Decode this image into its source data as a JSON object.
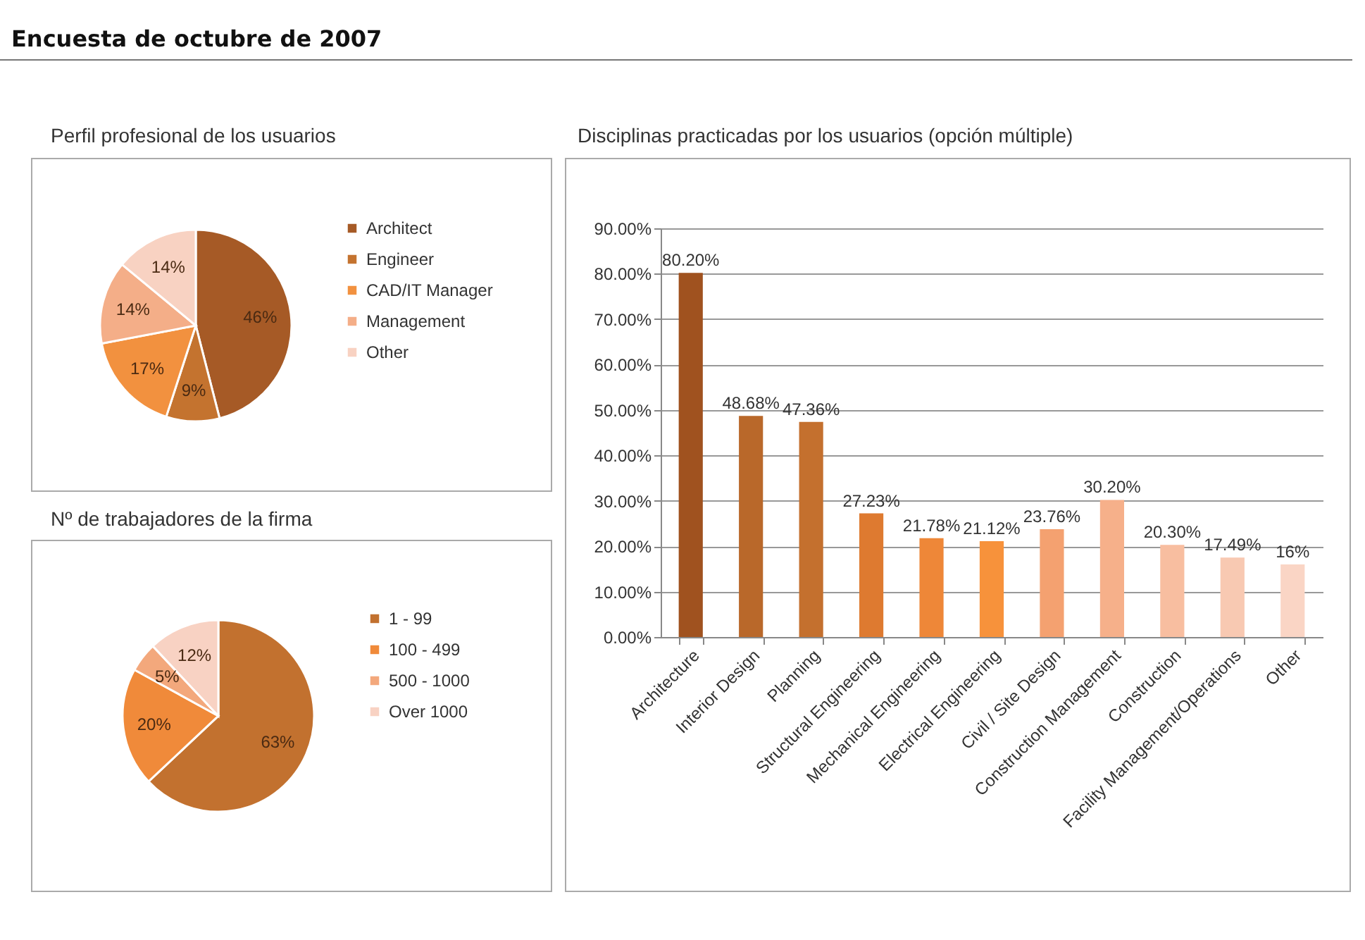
{
  "chart_data": [
    {
      "type": "pie",
      "title": "Encuesta de octubre de 2007",
      "subtitle": "Perfil profesional de los usuarios",
      "categories": [
        "Architect",
        "Engineer",
        "CAD/IT Manager",
        "Management",
        "Other"
      ],
      "values": [
        46,
        9,
        17,
        14,
        14
      ],
      "value_labels": [
        "46%",
        "9%",
        "17%",
        "14%",
        "14%"
      ],
      "colors": [
        "#a65a26",
        "#c4732f",
        "#f2913f",
        "#f4ae88",
        "#f8d2c2"
      ],
      "legend": "right"
    },
    {
      "type": "pie",
      "title": "Nº de trabajadores de la firma",
      "categories": [
        "1 - 99",
        "100 - 499",
        "500 - 1000",
        "Over 1000"
      ],
      "values": [
        63,
        20,
        5,
        12
      ],
      "value_labels": [
        "63%",
        "20%",
        "5%",
        "12%"
      ],
      "colors": [
        "#c2712f",
        "#f08a3a",
        "#f3a87c",
        "#f8d2c3"
      ],
      "legend": "right"
    },
    {
      "type": "bar",
      "title": "Disciplinas practicadas por los usuarios (opción múltiple)",
      "categories": [
        "Architecture",
        "Interior Design",
        "Planning",
        "Structural Engineering",
        "Mechanical Engineering",
        "Electrical Engineering",
        "Civil / Site Design",
        "Construction Management",
        "Construction",
        "Facility Management/Operations",
        "Other"
      ],
      "values": [
        80.2,
        48.68,
        47.36,
        27.23,
        21.78,
        21.12,
        23.76,
        30.2,
        20.3,
        17.49,
        16
      ],
      "value_labels": [
        "80.20%",
        "48.68%",
        "47.36%",
        "27.23%",
        "21.78%",
        "21.12%",
        "23.76%",
        "30.20%",
        "20.30%",
        "17.49%",
        "16%"
      ],
      "colors": [
        "#a0521f",
        "#b9682a",
        "#c4702e",
        "#de7a30",
        "#ee8738",
        "#f7923b",
        "#f4a170",
        "#f6b08a",
        "#f8bea0",
        "#f8c9b2",
        "#fad5c5"
      ],
      "ylim": [
        0,
        90
      ],
      "yticks": [
        {
          "value": 0,
          "label": "0.00%"
        },
        {
          "value": 10,
          "label": "10.00%"
        },
        {
          "value": 20,
          "label": "20.00%"
        },
        {
          "value": 30,
          "label": "30.00%"
        },
        {
          "value": 40,
          "label": "40.00%"
        },
        {
          "value": 50,
          "label": "50.00%"
        },
        {
          "value": 60,
          "label": "60.00%"
        },
        {
          "value": 70,
          "label": "70.00%"
        },
        {
          "value": 80,
          "label": "80.00%"
        },
        {
          "value": 90,
          "label": "90.00%"
        }
      ],
      "grid": "y"
    }
  ]
}
